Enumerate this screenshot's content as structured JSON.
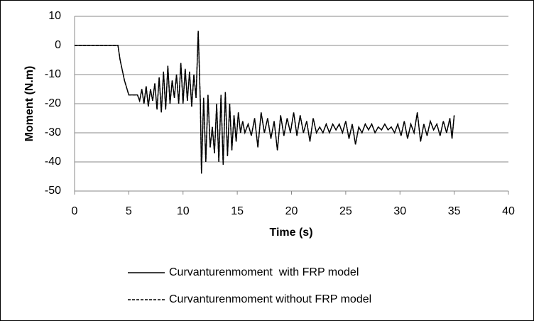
{
  "chart_data": {
    "type": "line",
    "x": [
      0,
      1,
      2,
      3,
      4,
      4.2,
      4.6,
      5.0,
      5.5,
      5.8,
      6.0,
      6.2,
      6.4,
      6.6,
      6.8,
      7.0,
      7.2,
      7.4,
      7.6,
      7.8,
      8.0,
      8.2,
      8.4,
      8.6,
      8.8,
      9.0,
      9.2,
      9.4,
      9.6,
      9.8,
      10.0,
      10.2,
      10.4,
      10.6,
      10.8,
      11.0,
      11.2,
      11.4,
      11.6,
      11.7,
      11.9,
      12.1,
      12.3,
      12.5,
      12.7,
      12.9,
      13.1,
      13.3,
      13.5,
      13.7,
      13.9,
      14.1,
      14.3,
      14.5,
      14.7,
      14.9,
      15.1,
      15.3,
      15.5,
      15.7,
      16.0,
      16.3,
      16.6,
      16.9,
      17.2,
      17.5,
      17.8,
      18.1,
      18.4,
      18.7,
      19.0,
      19.3,
      19.6,
      19.9,
      20.2,
      20.5,
      20.8,
      21.1,
      21.4,
      21.7,
      22.0,
      22.3,
      22.6,
      22.9,
      23.2,
      23.5,
      23.8,
      24.1,
      24.4,
      24.7,
      25.0,
      25.3,
      25.6,
      25.9,
      26.2,
      26.5,
      26.8,
      27.1,
      27.4,
      27.7,
      28.0,
      28.3,
      28.6,
      28.9,
      29.2,
      29.5,
      29.8,
      30.1,
      30.4,
      30.7,
      31.0,
      31.3,
      31.6,
      31.9,
      32.2,
      32.5,
      32.8,
      33.1,
      33.4,
      33.7,
      34.0,
      34.3,
      34.6,
      34.8,
      35.0
    ],
    "series": [
      {
        "name": "Curvanturenmoment  with FRP model",
        "color": "#000000",
        "style": "solid",
        "values": [
          0,
          0,
          0,
          0,
          0,
          -5,
          -12,
          -17,
          -17,
          -17,
          -19,
          -15,
          -20,
          -14,
          -21,
          -15,
          -19,
          -13,
          -22,
          -11,
          -23,
          -9,
          -22,
          -7,
          -20,
          -12,
          -18,
          -10,
          -20,
          -6,
          -20,
          -8,
          -19,
          -9,
          -21,
          -10,
          -18,
          5,
          -20,
          -44,
          -18,
          -40,
          -17,
          -35,
          -28,
          -37,
          -20,
          -40,
          -17,
          -41,
          -16,
          -38,
          -20,
          -36,
          -24,
          -33,
          -23,
          -30,
          -26,
          -30,
          -27,
          -31,
          -25,
          -35,
          -23,
          -30,
          -25,
          -32,
          -26,
          -36,
          -24,
          -31,
          -25,
          -30,
          -23,
          -31,
          -24,
          -30,
          -26,
          -33,
          -25,
          -30,
          -28,
          -30,
          -27,
          -30,
          -27,
          -29,
          -27,
          -30,
          -26,
          -32,
          -27,
          -34,
          -28,
          -30,
          -27,
          -29,
          -27,
          -30,
          -28,
          -29,
          -27,
          -29,
          -28,
          -30,
          -27,
          -31,
          -26,
          -32,
          -27,
          -30,
          -23,
          -33,
          -27,
          -31,
          -26,
          -29,
          -27,
          -31,
          -26,
          -30,
          -25,
          -32,
          -24
        ]
      },
      {
        "name": "Curvanturenmoment without FRP model",
        "color": "#000000",
        "style": "dashed",
        "values": [
          0,
          0,
          0,
          0,
          0,
          -5,
          -12,
          -17,
          -17,
          -17,
          -19,
          -15,
          -20,
          -14,
          -21,
          -15,
          -19,
          -13,
          -22,
          -11,
          -23,
          -9,
          -22,
          -7,
          -20,
          -12,
          -18,
          -10,
          -20,
          -6,
          -20,
          -8,
          -19,
          -9,
          -21,
          -10,
          -18,
          5,
          -20,
          -44,
          -18,
          -40,
          -17,
          -35,
          -28,
          -37,
          -20,
          -40,
          -17,
          -41,
          -16,
          -38,
          -20,
          -36,
          -24,
          -33,
          -23,
          -30,
          -26,
          -30,
          -27,
          -31,
          -25,
          -35,
          -23,
          -30,
          -25,
          -32,
          -26,
          -36,
          -24,
          -31,
          -25,
          -30,
          -23,
          -31,
          -24,
          -30,
          -26,
          -33,
          -25,
          -30,
          -28,
          -30,
          -27,
          -30,
          -27,
          -29,
          -27,
          -30,
          -26,
          -32,
          -27,
          -34,
          -28,
          -30,
          -27,
          -29,
          -27,
          -30,
          -28,
          -29,
          -27,
          -29,
          -28,
          -30,
          -27,
          -31,
          -26,
          -32,
          -27,
          -30,
          -23,
          -33,
          -27,
          -31,
          -26,
          -29,
          -27,
          -31,
          -26,
          -30,
          -25,
          -32,
          -24
        ]
      }
    ],
    "xlabel": "Time (s)",
    "ylabel": "Moment (N.m)",
    "xlim": [
      0,
      40
    ],
    "xticks": [
      0,
      5,
      10,
      15,
      20,
      25,
      30,
      35,
      40
    ],
    "ylim": [
      -50,
      10
    ],
    "yticks": [
      -50,
      -40,
      -30,
      -20,
      -10,
      0,
      10
    ],
    "grid": true,
    "legend": "bottom"
  }
}
